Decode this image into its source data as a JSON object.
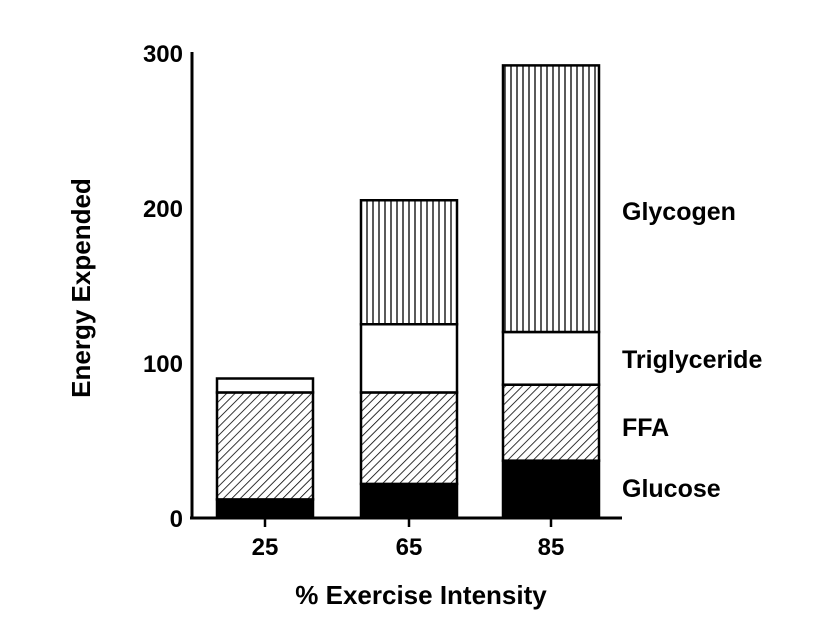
{
  "chart_data": {
    "type": "bar",
    "stacked": true,
    "xlabel": "% Exercise Intensity",
    "ylabel": "Energy Expended",
    "ylim": [
      0,
      300
    ],
    "yticks": [
      "0",
      "100",
      "200",
      "300"
    ],
    "categories": [
      "25",
      "65",
      "85"
    ],
    "series": [
      {
        "name": "Glucose",
        "values": [
          12,
          22,
          37
        ],
        "fill": "solid"
      },
      {
        "name": "FFA",
        "values": [
          69,
          59,
          49
        ],
        "fill": "diagonal-hatch"
      },
      {
        "name": "Triglyceride",
        "values": [
          9,
          44,
          34
        ],
        "fill": "white"
      },
      {
        "name": "Glycogen",
        "values": [
          0,
          80,
          172
        ],
        "fill": "vertical-hatch"
      }
    ],
    "legend_placement": "right",
    "grid": false,
    "colors": {
      "ink": "#000000",
      "background": "#ffffff"
    }
  }
}
